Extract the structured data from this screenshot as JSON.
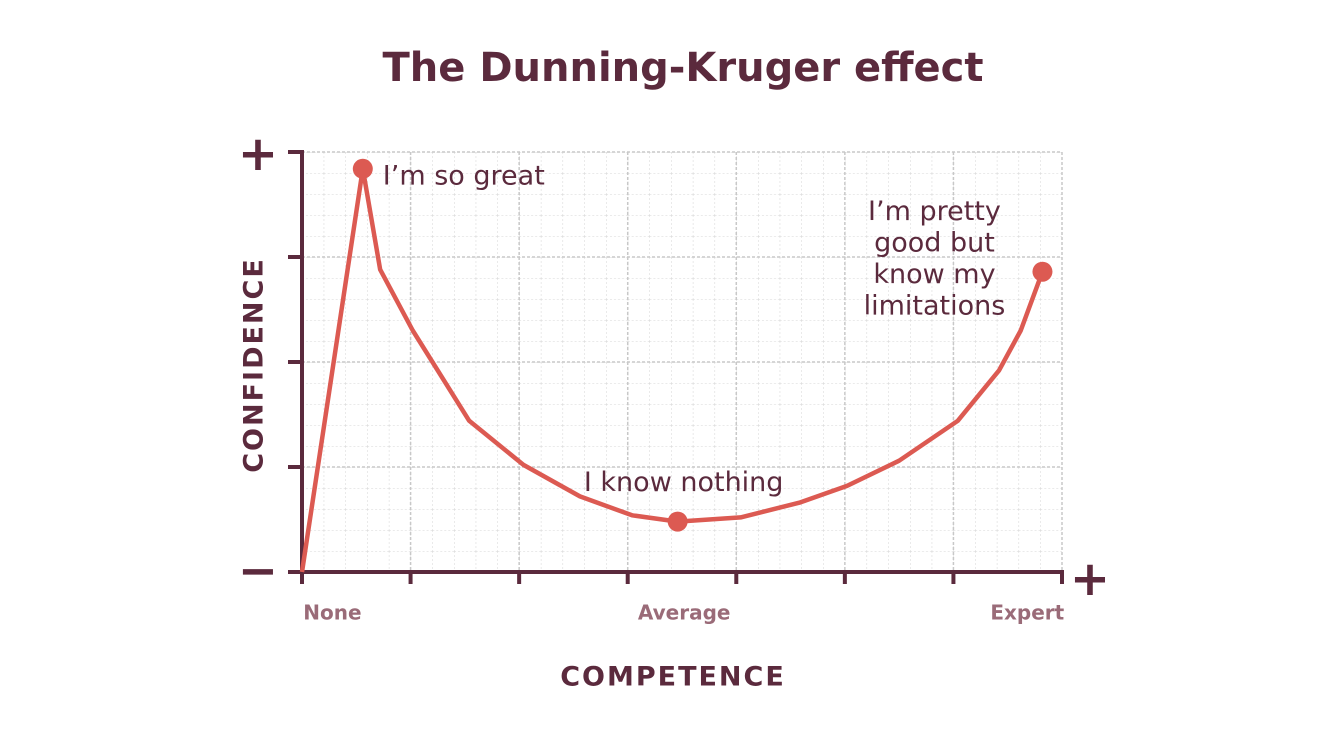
{
  "chart_data": {
    "type": "line",
    "title": "The Dunning-Kruger effect",
    "x_label": "COMPETENCE",
    "y_label": "CONFIDENCE",
    "y_axis_ends": [
      "−",
      "+"
    ],
    "x_axis_end": "+",
    "xlim": [
      0,
      35
    ],
    "ylim": [
      0,
      20
    ],
    "xticks": [
      0,
      5,
      10,
      15,
      20,
      25,
      30,
      35
    ],
    "yticks": [
      0,
      5,
      10,
      15,
      20
    ],
    "x_axis_labels": [
      {
        "value": 1.4,
        "label": "None"
      },
      {
        "value": 17.6,
        "label": "Average"
      },
      {
        "value": 33.4,
        "label": "Expert"
      }
    ],
    "grid": true,
    "color": "#dc5a52",
    "x": [
      0,
      2.8,
      3.6,
      5.1,
      7.7,
      10.2,
      12.8,
      15.2,
      17.3,
      20.2,
      22.9,
      25.1,
      27.5,
      30.2,
      32.1,
      33.1,
      34.1
    ],
    "values": [
      0,
      19.2,
      14.4,
      11.5,
      7.2,
      5.1,
      3.6,
      2.7,
      2.4,
      2.6,
      3.3,
      4.1,
      5.3,
      7.2,
      9.6,
      11.5,
      14.3
    ],
    "annotations": [
      {
        "x": 2.8,
        "y": 19.2,
        "text": [
          "I’m so great"
        ]
      },
      {
        "x": 17.3,
        "y": 2.4,
        "text": [
          "I know nothing"
        ]
      },
      {
        "x": 34.1,
        "y": 14.3,
        "text": [
          "I’m pretty",
          "good but",
          "know my",
          "limitations"
        ]
      }
    ]
  }
}
